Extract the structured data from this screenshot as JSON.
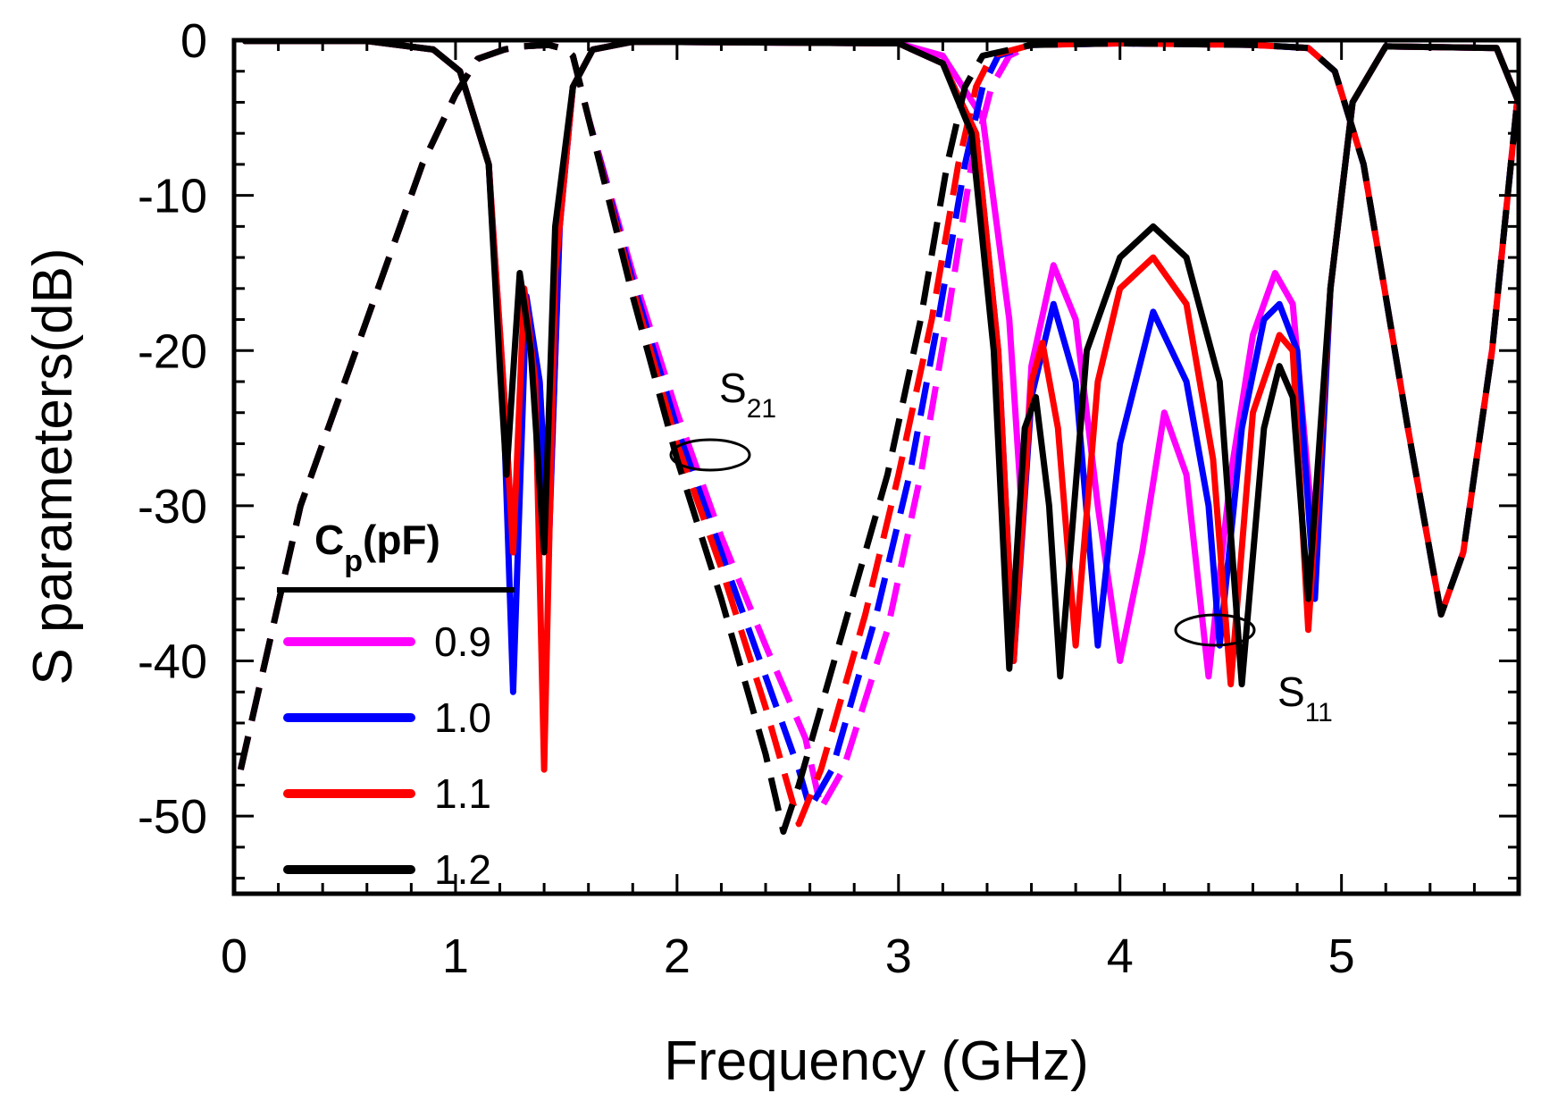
{
  "chart_data": {
    "type": "line",
    "title": "",
    "xlabel": "Frequency (GHz)",
    "ylabel": "S parameters(dB)",
    "xlim": [
      0,
      5.8
    ],
    "ylim": [
      -55,
      0
    ],
    "xticks": [
      0,
      1,
      2,
      3,
      4,
      5
    ],
    "yticks": [
      0,
      -10,
      -20,
      -30,
      -40,
      -50
    ],
    "xtick_labels": [
      "0",
      "1",
      "2",
      "3",
      "4",
      "5"
    ],
    "ytick_labels": [
      "0",
      "-10",
      "-20",
      "-30",
      "-40",
      "-50"
    ],
    "grid": false,
    "legend": {
      "position": "bottom-left",
      "title_main": "C",
      "title_sub": "p",
      "title_rest": "(pF)",
      "entries": [
        "0.9",
        "1.0",
        "1.1",
        "1.2"
      ]
    },
    "annotations": [
      {
        "main": "S",
        "sub": "21",
        "target": "S21 dashed curves",
        "at_frequency_GHz": 2.1,
        "at_dB": -26.5
      },
      {
        "main": "S",
        "sub": "11",
        "target": "S11 solid curves",
        "at_frequency_GHz": 4.45,
        "at_dB": -38
      }
    ],
    "series": [
      {
        "name": "0.9",
        "color": "#ff00ff",
        "s21": [
          [
            0.03,
            -47
          ],
          [
            0.3,
            -30
          ],
          [
            0.6,
            -18
          ],
          [
            0.85,
            -8
          ],
          [
            1.0,
            -3.5
          ],
          [
            1.1,
            -1.2
          ],
          [
            1.22,
            -0.6
          ],
          [
            1.3,
            -0.4
          ],
          [
            1.42,
            -0.3
          ],
          [
            1.5,
            -0.6
          ],
          [
            1.53,
            -1
          ],
          [
            1.6,
            -5
          ],
          [
            1.8,
            -15
          ],
          [
            2.0,
            -24
          ],
          [
            2.2,
            -32
          ],
          [
            2.4,
            -39
          ],
          [
            2.58,
            -45
          ],
          [
            2.65,
            -49.5
          ],
          [
            2.75,
            -47
          ],
          [
            2.95,
            -38
          ],
          [
            3.1,
            -28
          ],
          [
            3.22,
            -18
          ],
          [
            3.33,
            -8
          ],
          [
            3.42,
            -3
          ],
          [
            3.5,
            -1
          ],
          [
            3.6,
            -0.3
          ],
          [
            4.0,
            -0.2
          ],
          [
            4.6,
            -0.3
          ],
          [
            4.85,
            -0.5
          ],
          [
            4.97,
            -2
          ],
          [
            5.1,
            -8
          ],
          [
            5.3,
            -25
          ],
          [
            5.45,
            -37
          ],
          [
            5.55,
            -33
          ],
          [
            5.68,
            -20
          ],
          [
            5.8,
            -3
          ]
        ],
        "s11": [
          [
            0.05,
            -0.05
          ],
          [
            0.6,
            -0.05
          ],
          [
            0.9,
            -0.6
          ],
          [
            1.02,
            -2
          ],
          [
            1.15,
            -8
          ],
          [
            1.22,
            -23
          ],
          [
            1.26,
            -33
          ],
          [
            1.32,
            -17
          ],
          [
            1.38,
            -22
          ],
          [
            1.42,
            -33
          ],
          [
            1.47,
            -12
          ],
          [
            1.53,
            -3
          ],
          [
            1.62,
            -0.6
          ],
          [
            1.8,
            -0.1
          ],
          [
            3.0,
            -0.2
          ],
          [
            3.2,
            -1
          ],
          [
            3.38,
            -5
          ],
          [
            3.5,
            -18
          ],
          [
            3.56,
            -31
          ],
          [
            3.6,
            -21
          ],
          [
            3.7,
            -14.5
          ],
          [
            3.8,
            -18
          ],
          [
            3.9,
            -30
          ],
          [
            4.0,
            -40
          ],
          [
            4.1,
            -33
          ],
          [
            4.2,
            -24
          ],
          [
            4.3,
            -28
          ],
          [
            4.4,
            -41
          ],
          [
            4.5,
            -28
          ],
          [
            4.6,
            -19
          ],
          [
            4.7,
            -15
          ],
          [
            4.78,
            -17
          ],
          [
            4.88,
            -33
          ],
          [
            4.95,
            -16
          ],
          [
            5.05,
            -4
          ],
          [
            5.2,
            -0.4
          ],
          [
            5.7,
            -0.5
          ],
          [
            5.8,
            -4
          ]
        ]
      },
      {
        "name": "1.0",
        "color": "#0000ff",
        "s21": [
          [
            0.03,
            -47
          ],
          [
            0.3,
            -30
          ],
          [
            0.6,
            -18
          ],
          [
            0.85,
            -8
          ],
          [
            1.0,
            -3.5
          ],
          [
            1.1,
            -1.2
          ],
          [
            1.22,
            -0.6
          ],
          [
            1.3,
            -0.4
          ],
          [
            1.42,
            -0.3
          ],
          [
            1.5,
            -0.6
          ],
          [
            1.53,
            -1
          ],
          [
            1.6,
            -5
          ],
          [
            1.8,
            -15.5
          ],
          [
            2.0,
            -25
          ],
          [
            2.2,
            -33
          ],
          [
            2.4,
            -41
          ],
          [
            2.55,
            -47
          ],
          [
            2.6,
            -49.5
          ],
          [
            2.7,
            -47
          ],
          [
            2.9,
            -37
          ],
          [
            3.05,
            -28
          ],
          [
            3.18,
            -18
          ],
          [
            3.3,
            -8
          ],
          [
            3.38,
            -3
          ],
          [
            3.45,
            -1
          ],
          [
            3.6,
            -0.3
          ],
          [
            4.0,
            -0.2
          ],
          [
            4.6,
            -0.3
          ],
          [
            4.85,
            -0.5
          ],
          [
            4.97,
            -2
          ],
          [
            5.1,
            -8
          ],
          [
            5.3,
            -25
          ],
          [
            5.45,
            -37
          ],
          [
            5.55,
            -33
          ],
          [
            5.68,
            -20
          ],
          [
            5.8,
            -3
          ]
        ],
        "s11": [
          [
            0.05,
            -0.05
          ],
          [
            0.6,
            -0.05
          ],
          [
            0.9,
            -0.6
          ],
          [
            1.02,
            -2
          ],
          [
            1.15,
            -8
          ],
          [
            1.22,
            -25
          ],
          [
            1.26,
            -42
          ],
          [
            1.32,
            -16.5
          ],
          [
            1.38,
            -22
          ],
          [
            1.42,
            -33
          ],
          [
            1.47,
            -12
          ],
          [
            1.53,
            -3
          ],
          [
            1.62,
            -0.6
          ],
          [
            1.8,
            -0.1
          ],
          [
            3.0,
            -0.2
          ],
          [
            3.2,
            -1.5
          ],
          [
            3.35,
            -6
          ],
          [
            3.45,
            -20
          ],
          [
            3.52,
            -40
          ],
          [
            3.6,
            -23
          ],
          [
            3.7,
            -17
          ],
          [
            3.8,
            -22
          ],
          [
            3.9,
            -39
          ],
          [
            4.0,
            -26
          ],
          [
            4.15,
            -17.5
          ],
          [
            4.3,
            -22
          ],
          [
            4.4,
            -30
          ],
          [
            4.45,
            -39
          ],
          [
            4.55,
            -25
          ],
          [
            4.65,
            -18
          ],
          [
            4.72,
            -17
          ],
          [
            4.8,
            -20
          ],
          [
            4.88,
            -36
          ],
          [
            4.95,
            -16
          ],
          [
            5.05,
            -4
          ],
          [
            5.2,
            -0.4
          ],
          [
            5.7,
            -0.5
          ],
          [
            5.8,
            -4
          ]
        ]
      },
      {
        "name": "1.1",
        "color": "#ff0000",
        "s21": [
          [
            0.03,
            -47
          ],
          [
            0.3,
            -30
          ],
          [
            0.6,
            -18
          ],
          [
            0.85,
            -8
          ],
          [
            1.0,
            -3.5
          ],
          [
            1.1,
            -1.2
          ],
          [
            1.22,
            -0.6
          ],
          [
            1.3,
            -0.4
          ],
          [
            1.42,
            -0.3
          ],
          [
            1.5,
            -0.6
          ],
          [
            1.53,
            -1
          ],
          [
            1.6,
            -5
          ],
          [
            1.8,
            -16
          ],
          [
            2.0,
            -26
          ],
          [
            2.2,
            -34
          ],
          [
            2.4,
            -43
          ],
          [
            2.52,
            -49
          ],
          [
            2.55,
            -50.5
          ],
          [
            2.65,
            -47
          ],
          [
            2.85,
            -37
          ],
          [
            3.0,
            -28
          ],
          [
            3.15,
            -18
          ],
          [
            3.27,
            -8
          ],
          [
            3.35,
            -3
          ],
          [
            3.42,
            -1
          ],
          [
            3.6,
            -0.3
          ],
          [
            4.0,
            -0.2
          ],
          [
            4.6,
            -0.3
          ],
          [
            4.85,
            -0.5
          ],
          [
            4.97,
            -2
          ],
          [
            5.1,
            -8
          ],
          [
            5.3,
            -25
          ],
          [
            5.45,
            -37
          ],
          [
            5.55,
            -33
          ],
          [
            5.68,
            -20
          ],
          [
            5.8,
            -3
          ]
        ],
        "s11": [
          [
            0.05,
            -0.05
          ],
          [
            0.6,
            -0.05
          ],
          [
            0.9,
            -0.6
          ],
          [
            1.02,
            -2
          ],
          [
            1.15,
            -8
          ],
          [
            1.22,
            -23
          ],
          [
            1.26,
            -33
          ],
          [
            1.31,
            -16
          ],
          [
            1.36,
            -22
          ],
          [
            1.4,
            -47
          ],
          [
            1.45,
            -15
          ],
          [
            1.53,
            -3
          ],
          [
            1.62,
            -0.6
          ],
          [
            1.8,
            -0.1
          ],
          [
            3.0,
            -0.2
          ],
          [
            3.2,
            -1.5
          ],
          [
            3.35,
            -6
          ],
          [
            3.45,
            -20
          ],
          [
            3.52,
            -40
          ],
          [
            3.6,
            -22
          ],
          [
            3.65,
            -19.5
          ],
          [
            3.72,
            -25
          ],
          [
            3.8,
            -39
          ],
          [
            3.9,
            -22
          ],
          [
            4.0,
            -16
          ],
          [
            4.15,
            -14
          ],
          [
            4.3,
            -17
          ],
          [
            4.42,
            -27
          ],
          [
            4.5,
            -41.5
          ],
          [
            4.6,
            -24
          ],
          [
            4.72,
            -19
          ],
          [
            4.78,
            -20
          ],
          [
            4.85,
            -38
          ],
          [
            4.95,
            -16
          ],
          [
            5.05,
            -4
          ],
          [
            5.2,
            -0.4
          ],
          [
            5.7,
            -0.5
          ],
          [
            5.8,
            -4
          ]
        ]
      },
      {
        "name": "1.2",
        "color": "#000000",
        "s21": [
          [
            0.03,
            -47
          ],
          [
            0.3,
            -30
          ],
          [
            0.6,
            -18
          ],
          [
            0.85,
            -8
          ],
          [
            1.0,
            -3.5
          ],
          [
            1.1,
            -1.2
          ],
          [
            1.22,
            -0.6
          ],
          [
            1.3,
            -0.4
          ],
          [
            1.42,
            -0.3
          ],
          [
            1.5,
            -0.6
          ],
          [
            1.53,
            -1
          ],
          [
            1.6,
            -5
          ],
          [
            1.8,
            -16.5
          ],
          [
            2.0,
            -27
          ],
          [
            2.2,
            -36
          ],
          [
            2.4,
            -46
          ],
          [
            2.48,
            -51
          ],
          [
            2.55,
            -48
          ],
          [
            2.75,
            -38
          ],
          [
            2.95,
            -28
          ],
          [
            3.1,
            -18
          ],
          [
            3.22,
            -8
          ],
          [
            3.3,
            -3
          ],
          [
            3.38,
            -1
          ],
          [
            3.6,
            -0.3
          ],
          [
            4.0,
            -0.2
          ],
          [
            4.6,
            -0.3
          ],
          [
            4.85,
            -0.5
          ],
          [
            4.97,
            -2
          ],
          [
            5.1,
            -8
          ],
          [
            5.3,
            -25
          ],
          [
            5.45,
            -37
          ],
          [
            5.55,
            -33
          ],
          [
            5.68,
            -20
          ],
          [
            5.8,
            -3
          ]
        ],
        "s11": [
          [
            0.05,
            -0.05
          ],
          [
            0.6,
            -0.05
          ],
          [
            0.9,
            -0.6
          ],
          [
            1.02,
            -2
          ],
          [
            1.15,
            -8
          ],
          [
            1.2,
            -21
          ],
          [
            1.23,
            -28
          ],
          [
            1.29,
            -15
          ],
          [
            1.34,
            -20
          ],
          [
            1.4,
            -33
          ],
          [
            1.45,
            -12
          ],
          [
            1.53,
            -3
          ],
          [
            1.62,
            -0.6
          ],
          [
            1.8,
            -0.1
          ],
          [
            3.0,
            -0.2
          ],
          [
            3.2,
            -1.5
          ],
          [
            3.33,
            -6
          ],
          [
            3.43,
            -20
          ],
          [
            3.5,
            -40.5
          ],
          [
            3.57,
            -25
          ],
          [
            3.62,
            -23
          ],
          [
            3.68,
            -30
          ],
          [
            3.73,
            -41
          ],
          [
            3.85,
            -20
          ],
          [
            4.0,
            -14
          ],
          [
            4.15,
            -12
          ],
          [
            4.3,
            -14
          ],
          [
            4.45,
            -22
          ],
          [
            4.55,
            -41.5
          ],
          [
            4.65,
            -25
          ],
          [
            4.72,
            -21
          ],
          [
            4.78,
            -23
          ],
          [
            4.85,
            -36
          ],
          [
            4.95,
            -16
          ],
          [
            5.05,
            -4
          ],
          [
            5.2,
            -0.4
          ],
          [
            5.7,
            -0.5
          ],
          [
            5.8,
            -4
          ]
        ]
      }
    ]
  }
}
